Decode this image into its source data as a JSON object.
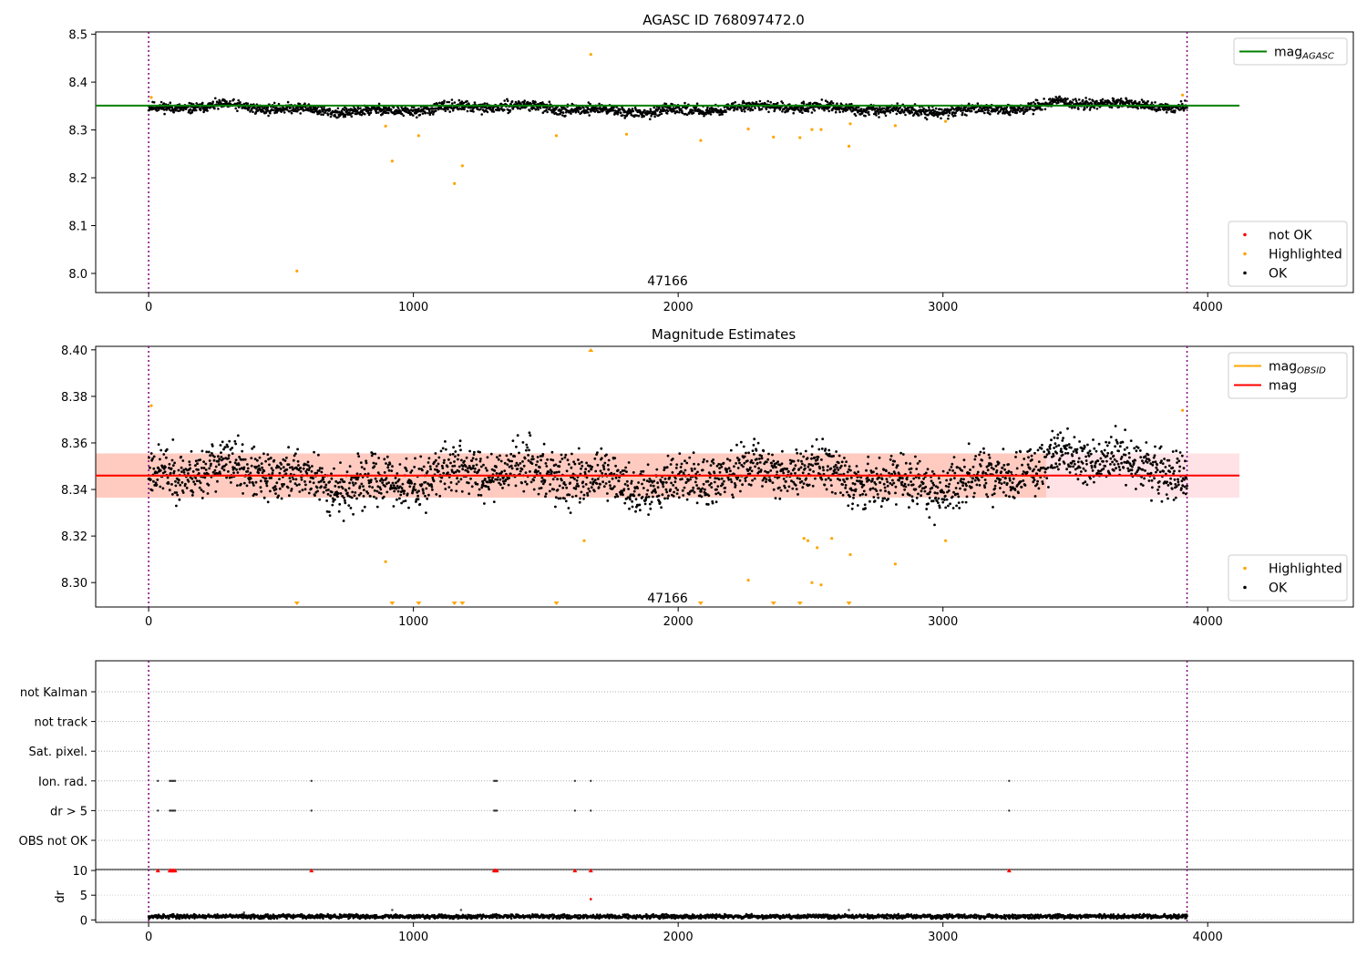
{
  "figure": {
    "background": "#ffffff"
  },
  "chart_data": [
    {
      "id": "p1",
      "type": "scatter",
      "title": "AGASC ID 768097472.0",
      "xlim": [
        -200,
        4550
      ],
      "ylim": [
        7.96,
        8.505
      ],
      "xticks": [
        0,
        1000,
        2000,
        3000,
        4000
      ],
      "yticks": [
        8.0,
        8.1,
        8.2,
        8.3,
        8.4,
        8.5
      ],
      "ytick_labels": [
        "8.0",
        "8.1",
        "8.2",
        "8.3",
        "8.4",
        "8.5"
      ],
      "obsid_label": "47166",
      "obsid_label_pos": [
        1960,
        7.985
      ],
      "vlines": [
        0,
        3922
      ],
      "vline_color": "#800080",
      "hlines": [
        {
          "y": 8.351,
          "x0": -200,
          "x1": 4120,
          "color": "#008000",
          "label": "mag",
          "sub": "AGASC"
        }
      ],
      "ok_band": {
        "center": 8.344,
        "amplitude": 0.009,
        "noise": 0.0065,
        "seed": 11
      },
      "highlighted": [
        [
          10,
          8.368
        ],
        [
          560,
          8.005
        ],
        [
          895,
          8.308
        ],
        [
          920,
          8.235
        ],
        [
          1020,
          8.288
        ],
        [
          1155,
          8.188
        ],
        [
          1185,
          8.225
        ],
        [
          1540,
          8.288
        ],
        [
          1670,
          8.458
        ],
        [
          1805,
          8.291
        ],
        [
          2085,
          8.278
        ],
        [
          2265,
          8.302
        ],
        [
          2360,
          8.285
        ],
        [
          2460,
          8.284
        ],
        [
          2505,
          8.301
        ],
        [
          2540,
          8.301
        ],
        [
          2645,
          8.266
        ],
        [
          2650,
          8.313
        ],
        [
          2820,
          8.309
        ],
        [
          3010,
          8.318
        ],
        [
          3905,
          8.373
        ]
      ],
      "colors": {
        "ok": "#000000",
        "highlighted": "#ffa500",
        "not_ok": "#ff0000"
      },
      "legends": [
        {
          "position": "top-right",
          "items": [
            {
              "kind": "line",
              "color": "#008000",
              "label": "mag",
              "sub": "AGASC"
            }
          ]
        },
        {
          "position": "bottom-right",
          "items": [
            {
              "kind": "dot",
              "color": "#ff0000",
              "label": "not OK"
            },
            {
              "kind": "dot",
              "color": "#ffa500",
              "label": "Highlighted"
            },
            {
              "kind": "dot",
              "color": "#000000",
              "label": "OK"
            }
          ]
        }
      ]
    },
    {
      "id": "p2",
      "type": "scatter",
      "title": "Magnitude Estimates",
      "xlim": [
        -200,
        4550
      ],
      "ylim": [
        8.2895,
        8.4015
      ],
      "xticks": [
        0,
        1000,
        2000,
        3000,
        4000
      ],
      "yticks": [
        8.3,
        8.32,
        8.34,
        8.36,
        8.38,
        8.4
      ],
      "ytick_labels": [
        "8.30",
        "8.32",
        "8.34",
        "8.36",
        "8.38",
        "8.40"
      ],
      "obsid_label": "47166",
      "obsid_label_pos": [
        1960,
        8.2935
      ],
      "vlines": [
        0,
        3922
      ],
      "vline_color": "#800080",
      "bands": [
        {
          "x0": -200,
          "x1": 4120,
          "y0": 8.3365,
          "y1": 8.3555,
          "color": "#ffb6c1",
          "alpha": 0.4
        },
        {
          "x0": -200,
          "x1": 3390,
          "y0": 8.3365,
          "y1": 8.3555,
          "color": "#ffa07a",
          "alpha": 0.35
        }
      ],
      "hlines": [
        {
          "y": 8.3459,
          "x0": -200,
          "x1": 3390,
          "color": "#ffa500",
          "label": "mag",
          "sub": "OBSID"
        },
        {
          "y": 8.346,
          "x0": -200,
          "x1": 4120,
          "color": "#ff0000",
          "label": "mag",
          "sub": ""
        }
      ],
      "ok_band": {
        "center": 8.3455,
        "amplitude": 0.0062,
        "noise": 0.0065,
        "seed": 23
      },
      "highlighted": [
        [
          10,
          8.376
        ],
        [
          895,
          8.309
        ],
        [
          1645,
          8.318
        ],
        [
          2265,
          8.301
        ],
        [
          2475,
          8.319
        ],
        [
          2490,
          8.318
        ],
        [
          2505,
          8.3
        ],
        [
          2525,
          8.315
        ],
        [
          2540,
          8.299
        ],
        [
          2580,
          8.319
        ],
        [
          2650,
          8.312
        ],
        [
          2820,
          8.308
        ],
        [
          3010,
          8.318
        ],
        [
          3905,
          8.374
        ]
      ],
      "markers_bottom": [
        560,
        920,
        1020,
        1155,
        1185,
        1540,
        2085,
        2360,
        2460,
        2645
      ],
      "markers_top": [
        1670
      ],
      "colors": {
        "ok": "#000000",
        "highlighted": "#ffa500"
      },
      "legends": [
        {
          "position": "top-right",
          "items": [
            {
              "kind": "line",
              "color": "#ffa500",
              "label": "mag",
              "sub": "OBSID"
            },
            {
              "kind": "line",
              "color": "#ff0000",
              "label": "mag",
              "sub": ""
            }
          ]
        },
        {
          "position": "bottom-right",
          "items": [
            {
              "kind": "dot",
              "color": "#ffa500",
              "label": "Highlighted"
            },
            {
              "kind": "dot",
              "color": "#000000",
              "label": "OK"
            }
          ]
        }
      ]
    },
    {
      "id": "p3",
      "type": "scatter",
      "title": "",
      "xlim": [
        -200,
        4550
      ],
      "categories": [
        "not Kalman",
        "not track",
        "Sat. pixel.",
        "Ion. rad.",
        "dr > 5",
        "OBS not OK"
      ],
      "flag_events": {
        "Ion. rad.": [
          35,
          80,
          85,
          90,
          95,
          100,
          615,
          1305,
          1310,
          1315,
          1610,
          1670,
          3250
        ],
        "dr > 5": [
          35,
          80,
          85,
          90,
          95,
          100,
          615,
          1305,
          1310,
          1315,
          1610,
          1670,
          3250
        ]
      },
      "vlines": [
        0,
        3922
      ],
      "vline_color": "#800080"
    },
    {
      "id": "p4",
      "type": "scatter",
      "ylabel": "dr",
      "xlim": [
        -200,
        4550
      ],
      "ylim": [
        -0.5,
        10.2
      ],
      "xticks": [
        0,
        1000,
        2000,
        3000,
        4000
      ],
      "yticks": [
        0,
        5,
        10
      ],
      "ytick_labels": [
        "0",
        "5",
        "10"
      ],
      "clipped_markers": [
        35,
        80,
        85,
        90,
        95,
        100,
        615,
        1305,
        1310,
        1315,
        1610,
        1670,
        3250
      ],
      "outliers": [
        [
          1670,
          4.2
        ],
        [
          920,
          2.0
        ],
        [
          1180,
          2.0
        ],
        [
          2645,
          2.0
        ],
        [
          360,
          1.5
        ]
      ],
      "ok_band": {
        "center": 0.7,
        "noise": 0.25,
        "seed": 37
      },
      "vlines": [
        0,
        3922
      ],
      "vline_color": "#800080"
    }
  ]
}
